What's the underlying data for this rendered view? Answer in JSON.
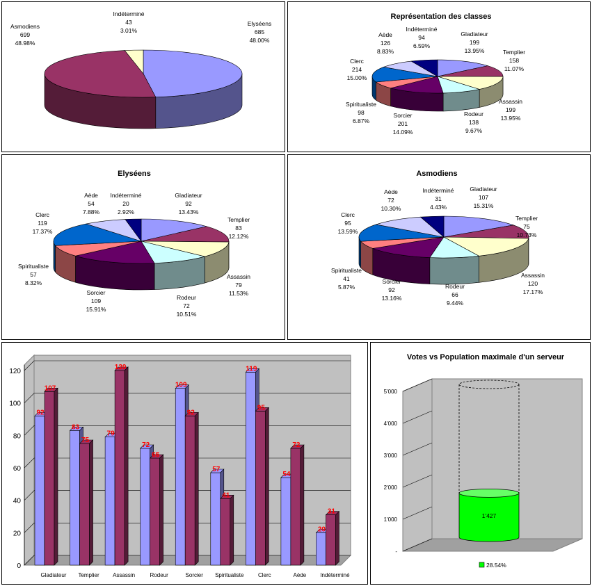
{
  "colors": {
    "Gladiateur": "#9999ff",
    "Templier": "#993366",
    "Assassin": "#ffffcc",
    "Rodeur": "#ccffff",
    "Sorcier": "#660066",
    "Spiritualiste": "#ff8080",
    "Clerc": "#0066cc",
    "Aède": "#ccccff",
    "Indéterminé": "#000080",
    "Elyséens": "#9999ff",
    "Asmodiens": "#993366",
    "IndetFaction": "#ffffcc",
    "bar_ely": "#9999ff",
    "bar_asm": "#993366",
    "cylinder": "#00ff00"
  },
  "chart_data": [
    {
      "id": "factions",
      "type": "pie",
      "title": "",
      "slices": [
        {
          "key": "Elyséens",
          "label": "Elyséens",
          "value": "685",
          "pct": "48.00%"
        },
        {
          "key": "Asmodiens",
          "label": "Asmodiens",
          "value": "699",
          "pct": "48.98%"
        },
        {
          "key": "IndetFaction",
          "label": "Indéterminé",
          "value": "43",
          "pct": "3.01%"
        }
      ]
    },
    {
      "id": "classes",
      "type": "pie",
      "title": "Représentation des classes",
      "slices": [
        {
          "key": "Gladiateur",
          "label": "Gladiateur",
          "value": "199",
          "pct": "13.95%"
        },
        {
          "key": "Templier",
          "label": "Templier",
          "value": "158",
          "pct": "11.07%"
        },
        {
          "key": "Assassin",
          "label": "Assassin",
          "value": "199",
          "pct": "13.95%"
        },
        {
          "key": "Rodeur",
          "label": "Rodeur",
          "value": "138",
          "pct": "9.67%"
        },
        {
          "key": "Sorcier",
          "label": "Sorcier",
          "value": "201",
          "pct": "14.09%"
        },
        {
          "key": "Spiritualiste",
          "label": "Spiritualiste",
          "value": "98",
          "pct": "6.87%"
        },
        {
          "key": "Clerc",
          "label": "Clerc",
          "value": "214",
          "pct": "15.00%"
        },
        {
          "key": "Aède",
          "label": "Aède",
          "value": "126",
          "pct": "8.83%"
        },
        {
          "key": "Indéterminé",
          "label": "Indéterminé",
          "value": "94",
          "pct": "6.59%"
        }
      ]
    },
    {
      "id": "elyseens",
      "type": "pie",
      "title": "Elyséens",
      "slices": [
        {
          "key": "Gladiateur",
          "label": "Gladiateur",
          "value": "92",
          "pct": "13.43%"
        },
        {
          "key": "Templier",
          "label": "Templier",
          "value": "83",
          "pct": "12.12%"
        },
        {
          "key": "Assassin",
          "label": "Assassin",
          "value": "79",
          "pct": "11.53%"
        },
        {
          "key": "Rodeur",
          "label": "Rodeur",
          "value": "72",
          "pct": "10.51%"
        },
        {
          "key": "Sorcier",
          "label": "Sorcier",
          "value": "109",
          "pct": "15.91%"
        },
        {
          "key": "Spiritualiste",
          "label": "Spiritualiste",
          "value": "57",
          "pct": "8.32%"
        },
        {
          "key": "Clerc",
          "label": "Clerc",
          "value": "119",
          "pct": "17.37%"
        },
        {
          "key": "Aède",
          "label": "Aède",
          "value": "54",
          "pct": "7.88%"
        },
        {
          "key": "Indéterminé",
          "label": "Indéterminé",
          "value": "20",
          "pct": "2.92%"
        }
      ]
    },
    {
      "id": "asmodiens",
      "type": "pie",
      "title": "Asmodiens",
      "slices": [
        {
          "key": "Gladiateur",
          "label": "Gladiateur",
          "value": "107",
          "pct": "15.31%"
        },
        {
          "key": "Templier",
          "label": "Templier",
          "value": "75",
          "pct": "10.73%"
        },
        {
          "key": "Assassin",
          "label": "Assassin",
          "value": "120",
          "pct": "17.17%"
        },
        {
          "key": "Rodeur",
          "label": "Rodeur",
          "value": "66",
          "pct": "9.44%"
        },
        {
          "key": "Sorcier",
          "label": "Sorcier",
          "value": "92",
          "pct": "13.16%"
        },
        {
          "key": "Spiritualiste",
          "label": "Spiritualiste",
          "value": "41",
          "pct": "5.87%"
        },
        {
          "key": "Clerc",
          "label": "Clerc",
          "value": "95",
          "pct": "13.59%"
        },
        {
          "key": "Aède",
          "label": "Aède",
          "value": "72",
          "pct": "10.30%"
        },
        {
          "key": "Indéterminé",
          "label": "Indéterminé",
          "value": "31",
          "pct": "4.43%"
        }
      ]
    },
    {
      "id": "comparison",
      "type": "bar",
      "title": "",
      "categories": [
        "Gladiateur",
        "Templier",
        "Assassin",
        "Rodeur",
        "Sorcier",
        "Spiritualiste",
        "Clerc",
        "Aède",
        "Indéterminé"
      ],
      "series": [
        {
          "key": "bar_ely",
          "values": [
            92,
            83,
            79,
            72,
            109,
            57,
            119,
            54,
            20
          ]
        },
        {
          "key": "bar_asm",
          "values": [
            107,
            75,
            120,
            66,
            92,
            41,
            95,
            72,
            31
          ]
        }
      ],
      "yticks": [
        "0",
        "20",
        "40",
        "60",
        "80",
        "100",
        "120"
      ],
      "ylim": [
        0,
        120
      ]
    },
    {
      "id": "votes",
      "type": "bar",
      "title": "Votes vs Population maximale d'un serveur",
      "value": 1427,
      "value_label": "1'427",
      "max": 5000,
      "yticks": [
        "-",
        "1'000",
        "2'000",
        "3'000",
        "4'000",
        "5'000"
      ],
      "legend": "28.54%"
    }
  ]
}
